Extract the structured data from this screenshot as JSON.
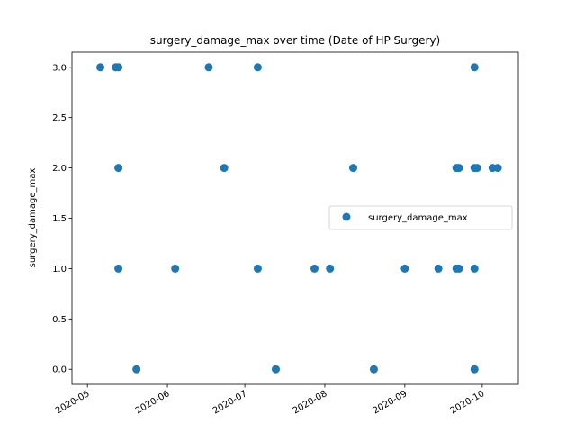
{
  "chart_data": {
    "type": "scatter",
    "title": "surgery_damage_max over time (Date of HP Surgery)",
    "xlabel": "",
    "ylabel": "surgery_damage_max",
    "x_ticks": [
      "2020-05",
      "2020-06",
      "2020-07",
      "2020-08",
      "2020-09",
      "2020-10"
    ],
    "y_ticks": [
      "0.0",
      "0.5",
      "1.0",
      "1.5",
      "2.0",
      "2.5",
      "3.0"
    ],
    "xlim": [
      "2020-04-25",
      "2020-10-15"
    ],
    "ylim": [
      -0.15,
      3.15
    ],
    "legend": {
      "location": "center-right",
      "entries": [
        "surgery_damage_max"
      ]
    },
    "grid": false,
    "color": "#1f77b4",
    "series": [
      {
        "name": "surgery_damage_max",
        "points": [
          {
            "x": "2020-05-06",
            "y": 3
          },
          {
            "x": "2020-05-12",
            "y": 3
          },
          {
            "x": "2020-05-13",
            "y": 3
          },
          {
            "x": "2020-05-13",
            "y": 2
          },
          {
            "x": "2020-05-13",
            "y": 1
          },
          {
            "x": "2020-05-20",
            "y": 0
          },
          {
            "x": "2020-06-04",
            "y": 1
          },
          {
            "x": "2020-06-17",
            "y": 3
          },
          {
            "x": "2020-06-23",
            "y": 2
          },
          {
            "x": "2020-07-06",
            "y": 3
          },
          {
            "x": "2020-07-06",
            "y": 1
          },
          {
            "x": "2020-07-13",
            "y": 0
          },
          {
            "x": "2020-07-28",
            "y": 1
          },
          {
            "x": "2020-08-03",
            "y": 1
          },
          {
            "x": "2020-08-12",
            "y": 2
          },
          {
            "x": "2020-08-20",
            "y": 0
          },
          {
            "x": "2020-09-01",
            "y": 1
          },
          {
            "x": "2020-09-14",
            "y": 1
          },
          {
            "x": "2020-09-21",
            "y": 2
          },
          {
            "x": "2020-09-21",
            "y": 1
          },
          {
            "x": "2020-09-22",
            "y": 2
          },
          {
            "x": "2020-09-22",
            "y": 1
          },
          {
            "x": "2020-09-28",
            "y": 3
          },
          {
            "x": "2020-09-28",
            "y": 2
          },
          {
            "x": "2020-09-28",
            "y": 1
          },
          {
            "x": "2020-09-28",
            "y": 0
          },
          {
            "x": "2020-09-29",
            "y": 2
          },
          {
            "x": "2020-10-05",
            "y": 2
          },
          {
            "x": "2020-10-07",
            "y": 2
          }
        ]
      }
    ]
  }
}
